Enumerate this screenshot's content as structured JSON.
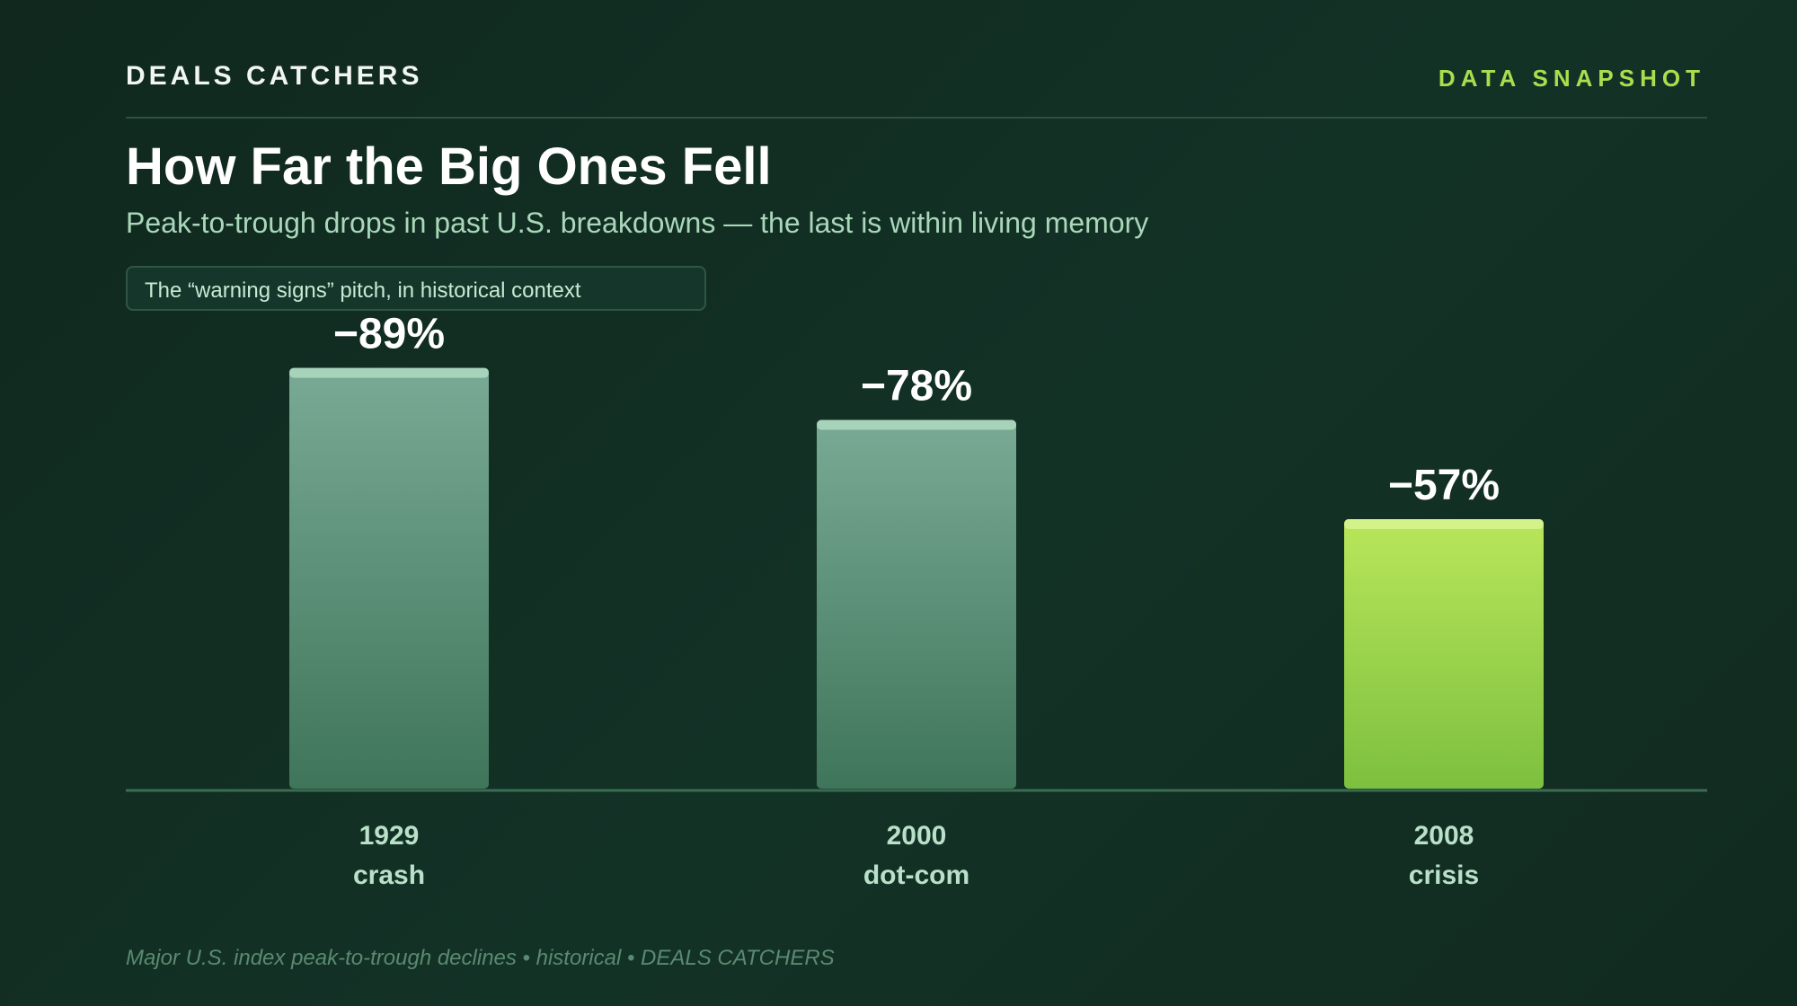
{
  "header": {
    "brand": "DEALS CATCHERS",
    "tag": "DATA SNAPSHOT"
  },
  "title": "How Far the Big Ones Fell",
  "subtitle": "Peak-to-trough drops in past U.S. breakdowns — the last is within living memory",
  "callout": "The “warning signs” pitch, in historical context",
  "footer": "Major U.S. index peak-to-trough declines • historical • DEALS CATCHERS",
  "colors": {
    "background": "#12291f",
    "historical_bar": "#5f9a7f",
    "highlight_bar": "#a6db46",
    "accent": "#a9df4e"
  },
  "chart_data": {
    "type": "bar",
    "title": "How Far the Big Ones Fell",
    "categories": [
      "1929 crash",
      "2000 dot-com",
      "2008 crisis"
    ],
    "category_lines": [
      [
        "1929",
        "crash"
      ],
      [
        "2000",
        "dot-com"
      ],
      [
        "2008",
        "crisis"
      ]
    ],
    "values": [
      -89,
      -78,
      -57
    ],
    "value_labels": [
      "−89%",
      "−78%",
      "−57%"
    ],
    "unit": "%",
    "highlighted": "2008 crisis",
    "ylim": [
      -100,
      0
    ],
    "grid": false,
    "legend": "none",
    "xlabel": "",
    "ylabel": ""
  }
}
